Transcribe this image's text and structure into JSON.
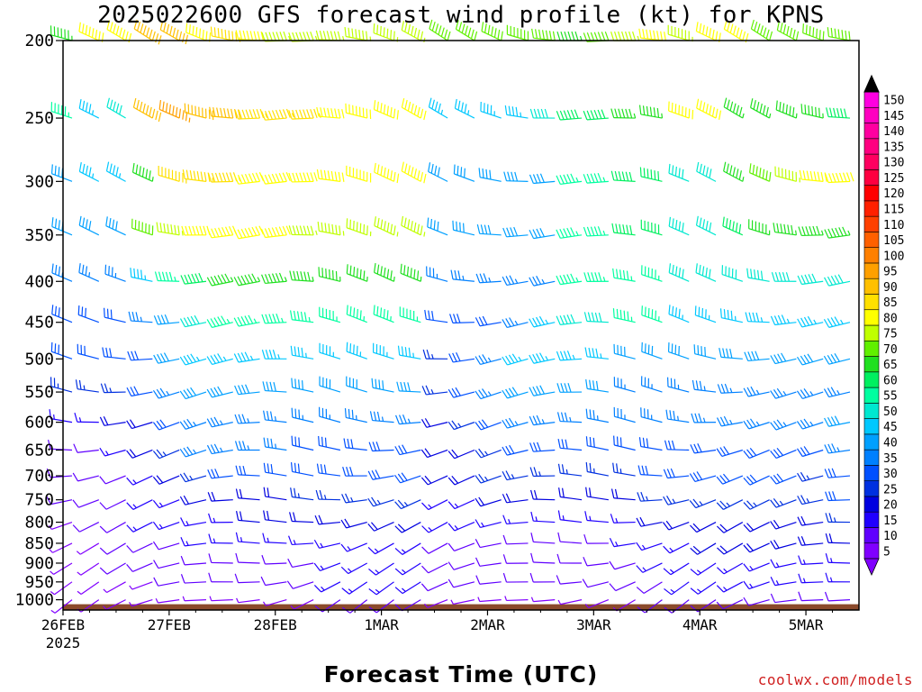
{
  "chart_data": {
    "type": "wind-barb time-height",
    "title": "2025022600 GFS forecast wind profile (kt) for KPNS",
    "xlabel": "Forecast Time (UTC)",
    "year_label": "2025",
    "x_ticks": [
      "26FEB",
      "27FEB",
      "28FEB",
      "1MAR",
      "2MAR",
      "3MAR",
      "4MAR",
      "5MAR"
    ],
    "x_range_days": [
      0,
      7.5
    ],
    "y_ticks": [
      200,
      250,
      300,
      350,
      400,
      450,
      500,
      550,
      600,
      650,
      700,
      750,
      800,
      850,
      900,
      950,
      1000
    ],
    "y_unit": "hPa",
    "y_scale": "log",
    "y_range": [
      200,
      1030
    ],
    "surface_pressure_hPa": 1013,
    "colorbar_levels": [
      5,
      10,
      15,
      20,
      25,
      30,
      35,
      40,
      45,
      50,
      55,
      60,
      65,
      70,
      75,
      80,
      85,
      90,
      95,
      100,
      105,
      110,
      115,
      120,
      125,
      130,
      135,
      140,
      145,
      150
    ],
    "colorbar_colors": [
      "#8000ff",
      "#6000ff",
      "#2000ff",
      "#0000e0",
      "#0030e0",
      "#0050ff",
      "#0080ff",
      "#00a0ff",
      "#00c8ff",
      "#00e8d0",
      "#00ffa0",
      "#00f060",
      "#20e020",
      "#60f000",
      "#c0ff00",
      "#ffff00",
      "#ffe000",
      "#ffc000",
      "#ffa000",
      "#ff8000",
      "#ff6000",
      "#ff4000",
      "#ff2000",
      "#ff0000",
      "#ff0040",
      "#ff0060",
      "#ff0080",
      "#ff00a0",
      "#ff00c0",
      "#ff00e0"
    ],
    "profile_levels_hPa": [
      200,
      250,
      300,
      350,
      400,
      450,
      500,
      550,
      600,
      650,
      700,
      750,
      800,
      850,
      900,
      950,
      1000
    ],
    "profile_speeds_kt": [
      [
        65,
        80,
        80,
        90,
        90,
        80,
        85,
        80,
        75,
        75,
        75,
        75,
        75,
        75,
        70,
        70,
        70,
        70,
        70,
        65,
        70,
        75,
        80,
        75,
        80,
        80,
        70,
        70,
        70,
        70
      ],
      [
        55,
        45,
        50,
        90,
        95,
        90,
        90,
        85,
        85,
        85,
        80,
        80,
        80,
        80,
        45,
        45,
        45,
        45,
        50,
        60,
        60,
        65,
        65,
        80,
        80,
        65,
        65,
        65,
        65,
        60
      ],
      [
        40,
        45,
        45,
        65,
        85,
        85,
        85,
        80,
        80,
        80,
        80,
        80,
        80,
        80,
        40,
        40,
        40,
        40,
        40,
        55,
        55,
        60,
        60,
        50,
        50,
        65,
        70,
        75,
        80,
        80
      ],
      [
        40,
        40,
        40,
        70,
        75,
        80,
        80,
        80,
        80,
        75,
        75,
        75,
        75,
        75,
        40,
        40,
        40,
        40,
        40,
        55,
        55,
        60,
        60,
        50,
        50,
        60,
        65,
        65,
        65,
        65
      ],
      [
        35,
        35,
        35,
        45,
        55,
        60,
        65,
        65,
        65,
        65,
        65,
        65,
        65,
        65,
        35,
        35,
        35,
        35,
        35,
        55,
        55,
        55,
        55,
        50,
        50,
        50,
        50,
        50,
        50,
        50
      ],
      [
        30,
        30,
        30,
        35,
        40,
        50,
        55,
        55,
        55,
        55,
        55,
        55,
        55,
        55,
        30,
        30,
        30,
        35,
        45,
        50,
        50,
        55,
        55,
        45,
        45,
        45,
        45,
        45,
        45,
        45
      ],
      [
        30,
        30,
        30,
        30,
        40,
        45,
        45,
        45,
        45,
        45,
        45,
        45,
        45,
        45,
        25,
        30,
        35,
        45,
        45,
        45,
        45,
        40,
        40,
        40,
        40,
        40,
        40,
        40,
        40,
        40
      ],
      [
        25,
        25,
        25,
        30,
        35,
        40,
        40,
        40,
        40,
        40,
        40,
        40,
        40,
        40,
        25,
        30,
        35,
        40,
        40,
        40,
        40,
        35,
        35,
        35,
        35,
        35,
        35,
        35,
        35,
        35
      ],
      [
        15,
        15,
        20,
        20,
        30,
        35,
        35,
        35,
        35,
        35,
        35,
        35,
        35,
        35,
        20,
        25,
        30,
        35,
        35,
        35,
        35,
        35,
        35,
        35,
        35,
        35,
        35,
        35,
        35,
        40
      ],
      [
        10,
        10,
        15,
        20,
        25,
        35,
        35,
        35,
        35,
        30,
        30,
        30,
        30,
        30,
        20,
        20,
        25,
        30,
        30,
        30,
        30,
        30,
        30,
        30,
        30,
        30,
        30,
        30,
        30,
        35
      ],
      [
        10,
        10,
        10,
        15,
        20,
        25,
        30,
        30,
        30,
        30,
        30,
        30,
        30,
        30,
        20,
        20,
        25,
        25,
        25,
        25,
        25,
        25,
        30,
        30,
        30,
        30,
        30,
        30,
        25,
        30
      ],
      [
        10,
        10,
        10,
        15,
        15,
        20,
        20,
        20,
        20,
        25,
        25,
        25,
        25,
        25,
        15,
        15,
        20,
        20,
        20,
        20,
        20,
        20,
        25,
        25,
        25,
        25,
        25,
        25,
        25,
        30
      ],
      [
        5,
        10,
        10,
        15,
        15,
        15,
        15,
        20,
        20,
        20,
        20,
        20,
        20,
        20,
        15,
        15,
        15,
        15,
        15,
        15,
        15,
        15,
        20,
        20,
        20,
        20,
        20,
        20,
        20,
        25
      ],
      [
        5,
        5,
        10,
        10,
        10,
        15,
        15,
        15,
        15,
        15,
        15,
        15,
        15,
        15,
        10,
        10,
        10,
        10,
        10,
        10,
        10,
        15,
        15,
        15,
        20,
        20,
        20,
        20,
        20,
        20
      ],
      [
        5,
        5,
        10,
        10,
        10,
        10,
        10,
        10,
        10,
        10,
        15,
        15,
        15,
        15,
        10,
        10,
        10,
        10,
        10,
        10,
        10,
        10,
        15,
        15,
        15,
        15,
        15,
        15,
        15,
        15
      ],
      [
        5,
        5,
        5,
        5,
        10,
        10,
        10,
        10,
        10,
        10,
        15,
        15,
        15,
        15,
        10,
        10,
        10,
        10,
        10,
        10,
        10,
        10,
        10,
        15,
        15,
        15,
        15,
        15,
        15,
        15
      ],
      [
        5,
        5,
        5,
        5,
        5,
        5,
        5,
        5,
        5,
        5,
        10,
        10,
        10,
        10,
        5,
        5,
        5,
        5,
        5,
        5,
        5,
        5,
        10,
        10,
        10,
        10,
        10,
        10,
        10,
        10
      ]
    ]
  },
  "credit": "coolwx.com/models",
  "colors": {
    "ground": "#8b4a2b",
    "frame": "#000000",
    "credit": "#d02020"
  }
}
